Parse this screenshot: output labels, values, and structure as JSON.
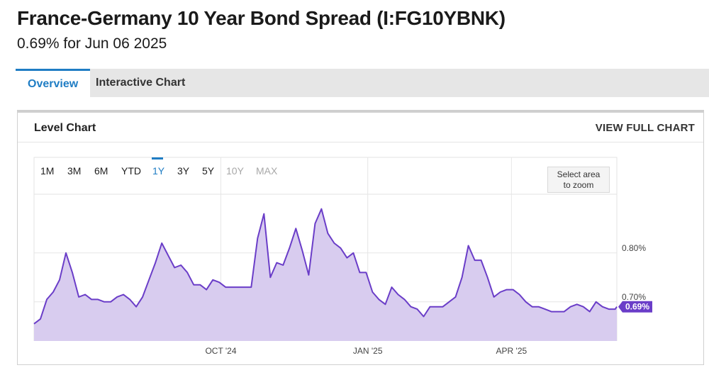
{
  "header": {
    "title": "France-Germany 10 Year Bond Spread (I:FG10YBNK)",
    "subtitle": "0.69% for Jun 06 2025"
  },
  "tabs": [
    {
      "label": "Overview",
      "active": true
    },
    {
      "label": "Interactive Chart",
      "active": false
    }
  ],
  "card": {
    "title": "Level Chart",
    "full_chart_link": "VIEW FULL CHART"
  },
  "range_selector": {
    "buttons": [
      "1M",
      "3M",
      "6M",
      "YTD",
      "1Y",
      "3Y",
      "5Y",
      "10Y",
      "MAX"
    ],
    "active": "1Y",
    "disabled": [
      "10Y",
      "MAX"
    ]
  },
  "zoom_hint": {
    "line1": "Select area",
    "line2": "to zoom"
  },
  "colors": {
    "accent": "#1f7dc4",
    "series_line": "#6a3dc8",
    "series_fill": "#d8ccef",
    "last_label_bg": "#6a3dc8"
  },
  "chart_data": {
    "type": "area",
    "series": [
      {
        "name": "",
        "x": [
          "2024-06-06",
          "2024-06-10",
          "2024-06-14",
          "2024-06-18",
          "2024-06-22",
          "2024-06-26",
          "2024-06-30",
          "2024-07-04",
          "2024-07-08",
          "2024-07-12",
          "2024-07-16",
          "2024-07-20",
          "2024-07-24",
          "2024-07-28",
          "2024-08-01",
          "2024-08-05",
          "2024-08-09",
          "2024-08-13",
          "2024-08-17",
          "2024-08-21",
          "2024-08-25",
          "2024-08-29",
          "2024-09-02",
          "2024-09-06",
          "2024-09-10",
          "2024-09-14",
          "2024-09-18",
          "2024-09-22",
          "2024-09-26",
          "2024-09-30",
          "2024-10-04",
          "2024-10-08",
          "2024-10-12",
          "2024-10-16",
          "2024-10-20",
          "2024-10-24",
          "2024-10-28",
          "2024-11-01",
          "2024-11-05",
          "2024-11-09",
          "2024-11-13",
          "2024-11-17",
          "2024-11-21",
          "2024-11-25",
          "2024-11-29",
          "2024-12-03",
          "2024-12-07",
          "2024-12-11",
          "2024-12-15",
          "2024-12-19",
          "2024-12-23",
          "2024-12-27",
          "2024-12-31",
          "2025-01-04",
          "2025-01-08",
          "2025-01-12",
          "2025-01-16",
          "2025-01-20",
          "2025-01-24",
          "2025-01-28",
          "2025-02-01",
          "2025-02-05",
          "2025-02-09",
          "2025-02-13",
          "2025-02-17",
          "2025-02-21",
          "2025-02-25",
          "2025-03-01",
          "2025-03-05",
          "2025-03-09",
          "2025-03-13",
          "2025-03-17",
          "2025-03-21",
          "2025-03-25",
          "2025-03-29",
          "2025-04-02",
          "2025-04-06",
          "2025-04-10",
          "2025-04-14",
          "2025-04-18",
          "2025-04-22",
          "2025-04-26",
          "2025-04-30",
          "2025-05-04",
          "2025-05-08",
          "2025-05-12",
          "2025-05-16",
          "2025-05-20",
          "2025-05-24",
          "2025-05-28",
          "2025-06-01",
          "2025-06-05",
          "2025-06-06"
        ],
        "values": [
          0.655,
          0.665,
          0.705,
          0.72,
          0.745,
          0.8,
          0.76,
          0.71,
          0.715,
          0.705,
          0.705,
          0.7,
          0.7,
          0.71,
          0.715,
          0.705,
          0.69,
          0.71,
          0.745,
          0.78,
          0.82,
          0.795,
          0.77,
          0.775,
          0.76,
          0.735,
          0.735,
          0.725,
          0.745,
          0.74,
          0.73,
          0.73,
          0.73,
          0.73,
          0.73,
          0.83,
          0.88,
          0.75,
          0.78,
          0.775,
          0.81,
          0.85,
          0.805,
          0.755,
          0.86,
          0.89,
          0.84,
          0.82,
          0.81,
          0.79,
          0.8,
          0.76,
          0.76,
          0.72,
          0.705,
          0.695,
          0.73,
          0.715,
          0.705,
          0.69,
          0.685,
          0.67,
          0.69,
          0.69,
          0.69,
          0.7,
          0.71,
          0.75,
          0.815,
          0.785,
          0.785,
          0.75,
          0.71,
          0.72,
          0.725,
          0.725,
          0.715,
          0.7,
          0.69,
          0.69,
          0.685,
          0.68,
          0.68,
          0.68,
          0.69,
          0.695,
          0.69,
          0.68,
          0.7,
          0.69,
          0.685,
          0.685,
          0.69
        ]
      }
    ],
    "x_tick_labels": [
      "OCT '24",
      "JAN '25",
      "APR '25"
    ],
    "x_tick_dates": [
      "2024-10-01",
      "2025-01-01",
      "2025-04-01"
    ],
    "y_tick_labels": [
      "0.80%",
      "0.70%"
    ],
    "y_ticks": [
      0.8,
      0.7
    ],
    "ylim": [
      0.62,
      0.92
    ],
    "last_value_label": "0.69%",
    "grid": true
  }
}
